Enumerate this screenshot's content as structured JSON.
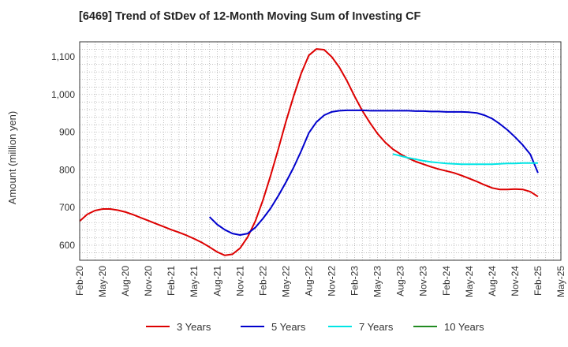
{
  "chart_data": {
    "type": "line",
    "title": "[6469]  Trend of StDev of 12-Month Moving Sum of Investing CF",
    "ylabel": "Amount (million yen)",
    "xlabel": "",
    "x_ticks": [
      "Feb-20",
      "May-20",
      "Aug-20",
      "Nov-20",
      "Feb-21",
      "May-21",
      "Aug-21",
      "Nov-21",
      "Feb-22",
      "May-22",
      "Aug-22",
      "Nov-22",
      "Feb-23",
      "May-23",
      "Aug-23",
      "Nov-23",
      "Feb-24",
      "May-24",
      "Aug-24",
      "Nov-24",
      "Feb-25",
      "May-25"
    ],
    "y_ticks": [
      600,
      700,
      800,
      900,
      1000,
      1100
    ],
    "y_tick_labels": [
      "600",
      "700",
      "800",
      "900",
      "1,000",
      "1,100"
    ],
    "ylim": [
      560,
      1140
    ],
    "grid": true,
    "legend_position": "bottom",
    "series": [
      {
        "name": "3 Years",
        "color": "#dd0000",
        "points": [
          [
            "Feb-20",
            664
          ],
          [
            "Mar-20",
            682
          ],
          [
            "Apr-20",
            692
          ],
          [
            "May-20",
            696
          ],
          [
            "Jun-20",
            696
          ],
          [
            "Jul-20",
            693
          ],
          [
            "Aug-20",
            688
          ],
          [
            "Sep-20",
            681
          ],
          [
            "Oct-20",
            673
          ],
          [
            "Nov-20",
            665
          ],
          [
            "Dec-20",
            657
          ],
          [
            "Jan-21",
            649
          ],
          [
            "Feb-21",
            641
          ],
          [
            "Mar-21",
            634
          ],
          [
            "Apr-21",
            626
          ],
          [
            "May-21",
            617
          ],
          [
            "Jun-21",
            607
          ],
          [
            "Jul-21",
            595
          ],
          [
            "Aug-21",
            582
          ],
          [
            "Sep-21",
            573
          ],
          [
            "Oct-21",
            576
          ],
          [
            "Nov-21",
            592
          ],
          [
            "Dec-21",
            622
          ],
          [
            "Jan-22",
            664
          ],
          [
            "Feb-22",
            720
          ],
          [
            "Mar-22",
            785
          ],
          [
            "Apr-22",
            855
          ],
          [
            "May-22",
            928
          ],
          [
            "Jun-22",
            995
          ],
          [
            "Jul-22",
            1056
          ],
          [
            "Aug-22",
            1104
          ],
          [
            "Sep-22",
            1121
          ],
          [
            "Oct-22",
            1119
          ],
          [
            "Nov-22",
            1100
          ],
          [
            "Dec-22",
            1072
          ],
          [
            "Jan-23",
            1036
          ],
          [
            "Feb-23",
            995
          ],
          [
            "Mar-23",
            957
          ],
          [
            "Apr-23",
            925
          ],
          [
            "May-23",
            896
          ],
          [
            "Jun-23",
            873
          ],
          [
            "Jul-23",
            855
          ],
          [
            "Aug-23",
            842
          ],
          [
            "Sep-23",
            831
          ],
          [
            "Oct-23",
            822
          ],
          [
            "Nov-23",
            815
          ],
          [
            "Dec-23",
            808
          ],
          [
            "Jan-24",
            802
          ],
          [
            "Feb-24",
            797
          ],
          [
            "Mar-24",
            792
          ],
          [
            "Apr-24",
            785
          ],
          [
            "May-24",
            777
          ],
          [
            "Jun-24",
            769
          ],
          [
            "Jul-24",
            760
          ],
          [
            "Aug-24",
            752
          ],
          [
            "Sep-24",
            748
          ],
          [
            "Oct-24",
            748
          ],
          [
            "Nov-24",
            749
          ],
          [
            "Dec-24",
            748
          ],
          [
            "Jan-25",
            742
          ],
          [
            "Feb-25",
            729
          ]
        ]
      },
      {
        "name": "5 Years",
        "color": "#0000cc",
        "points": [
          [
            "Jul-21",
            675
          ],
          [
            "Aug-21",
            655
          ],
          [
            "Sep-21",
            641
          ],
          [
            "Oct-21",
            631
          ],
          [
            "Nov-21",
            627
          ],
          [
            "Dec-21",
            631
          ],
          [
            "Jan-22",
            647
          ],
          [
            "Feb-22",
            671
          ],
          [
            "Mar-22",
            698
          ],
          [
            "Apr-22",
            731
          ],
          [
            "May-22",
            767
          ],
          [
            "Jun-22",
            806
          ],
          [
            "Jul-22",
            850
          ],
          [
            "Aug-22",
            898
          ],
          [
            "Sep-22",
            927
          ],
          [
            "Oct-22",
            945
          ],
          [
            "Nov-22",
            954
          ],
          [
            "Dec-22",
            957
          ],
          [
            "Jan-23",
            958
          ],
          [
            "Feb-23",
            958
          ],
          [
            "Mar-23",
            958
          ],
          [
            "Apr-23",
            957
          ],
          [
            "May-23",
            957
          ],
          [
            "Jun-23",
            957
          ],
          [
            "Jul-23",
            957
          ],
          [
            "Aug-23",
            957
          ],
          [
            "Sep-23",
            957
          ],
          [
            "Oct-23",
            956
          ],
          [
            "Nov-23",
            956
          ],
          [
            "Dec-23",
            955
          ],
          [
            "Jan-24",
            955
          ],
          [
            "Feb-24",
            954
          ],
          [
            "Mar-24",
            954
          ],
          [
            "Apr-24",
            954
          ],
          [
            "May-24",
            953
          ],
          [
            "Jun-24",
            951
          ],
          [
            "Jul-24",
            945
          ],
          [
            "Aug-24",
            936
          ],
          [
            "Sep-24",
            922
          ],
          [
            "Oct-24",
            906
          ],
          [
            "Nov-24",
            887
          ],
          [
            "Dec-24",
            866
          ],
          [
            "Jan-25",
            841
          ],
          [
            "Feb-25",
            792
          ]
        ]
      },
      {
        "name": "7 Years",
        "color": "#00e5e5",
        "points": [
          [
            "Jul-23",
            842
          ],
          [
            "Aug-23",
            837
          ],
          [
            "Sep-23",
            832
          ],
          [
            "Oct-23",
            828
          ],
          [
            "Nov-23",
            824
          ],
          [
            "Dec-23",
            821
          ],
          [
            "Jan-24",
            819
          ],
          [
            "Feb-24",
            817
          ],
          [
            "Mar-24",
            816
          ],
          [
            "Apr-24",
            815
          ],
          [
            "May-24",
            815
          ],
          [
            "Jun-24",
            815
          ],
          [
            "Jul-24",
            815
          ],
          [
            "Aug-24",
            815
          ],
          [
            "Sep-24",
            816
          ],
          [
            "Oct-24",
            817
          ],
          [
            "Nov-24",
            817
          ],
          [
            "Dec-24",
            818
          ],
          [
            "Jan-25",
            818
          ],
          [
            "Feb-25",
            818
          ]
        ]
      },
      {
        "name": "10 Years",
        "color": "#228b22",
        "points": []
      }
    ]
  }
}
